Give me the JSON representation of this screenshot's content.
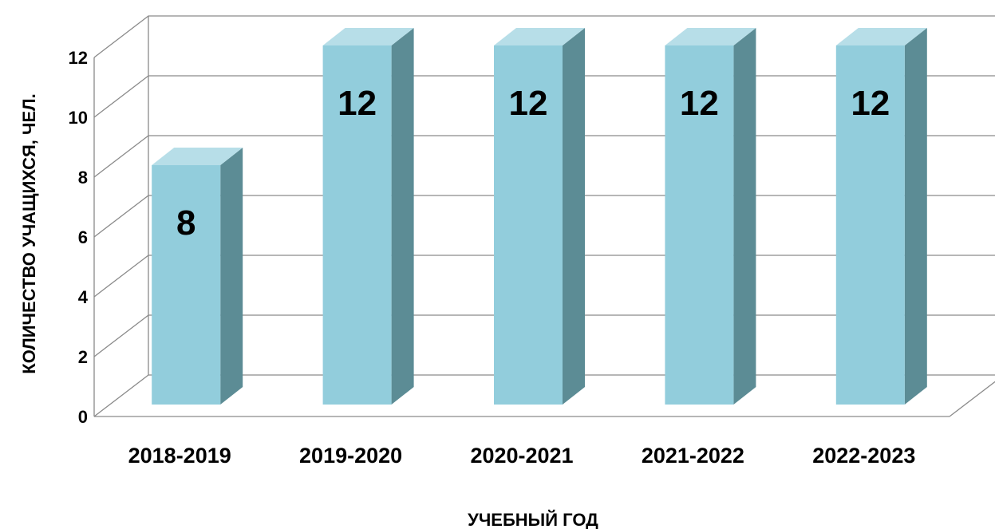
{
  "chart_data": {
    "type": "bar",
    "categories": [
      "2018-2019",
      "2019-2020",
      "2020-2021",
      "2021-2022",
      "2022-2023"
    ],
    "values": [
      8,
      12,
      12,
      12,
      12
    ],
    "data_labels": [
      "8",
      "12",
      "12",
      "12",
      "12"
    ],
    "title": "",
    "xlabel": "УЧЕБНЫЙ ГОД",
    "ylabel": "КОЛИЧЕСТВО УЧАЩИХСЯ, ЧЕЛ.",
    "ylim": [
      0,
      12
    ],
    "yticks": [
      "0",
      "2",
      "4",
      "6",
      "8",
      "10",
      "12"
    ],
    "grid": true,
    "legend": "none",
    "style": "3d-column",
    "colors": {
      "bar_front": "#92CDDC",
      "bar_side": "#5C8C95",
      "bar_top": "#B7DEE8",
      "grid": "#8a8a8a",
      "text": "#000000"
    }
  }
}
